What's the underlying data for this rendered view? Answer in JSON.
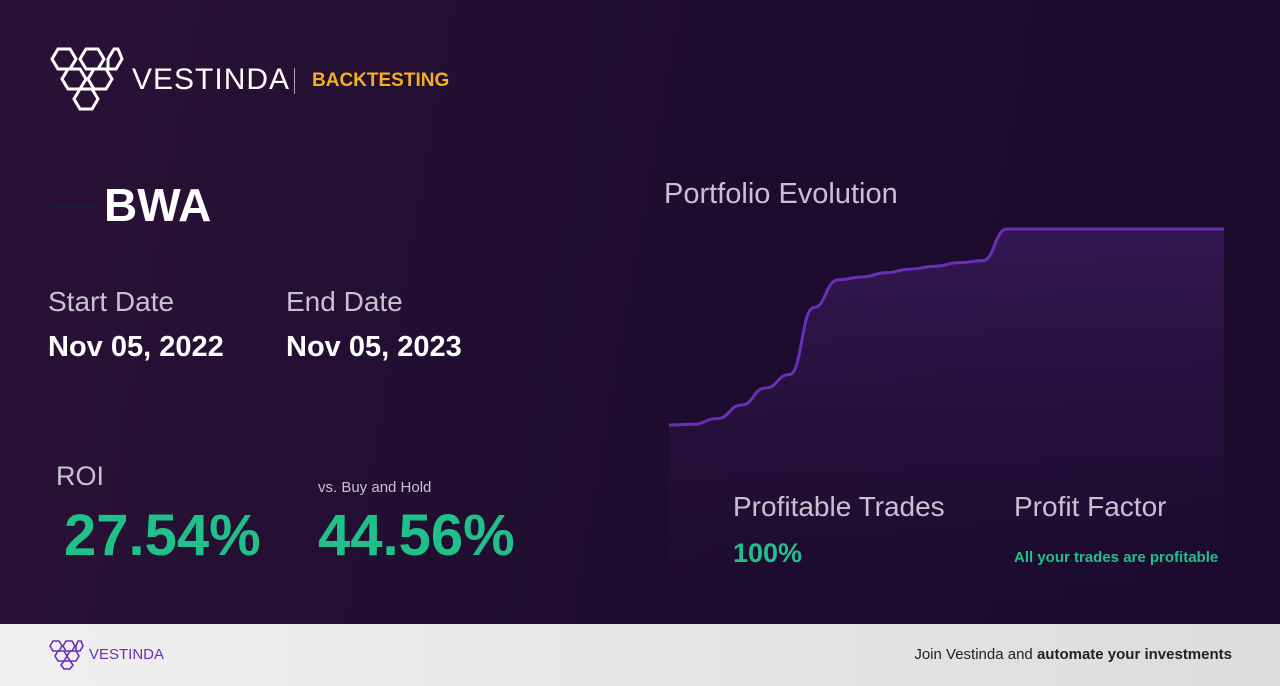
{
  "header": {
    "brand": "VESTINDA",
    "section": "BACKTESTING"
  },
  "ticker": "BWA",
  "start_date": {
    "label": "Start Date",
    "value": "Nov 05, 2022"
  },
  "end_date": {
    "label": "End Date",
    "value": "Nov 05, 2023"
  },
  "roi": {
    "label": "ROI",
    "value": "27.54%"
  },
  "vs_buy_hold": {
    "label": "vs. Buy and Hold",
    "value": "44.56%"
  },
  "chart_data": {
    "type": "line",
    "title": "Portfolio Evolution",
    "color": "#6a2fb8",
    "values": [
      0,
      0.1,
      0.9,
      2.8,
      5.2,
      7.1,
      16.5,
      20.4,
      20.8,
      21.4,
      21.9,
      22.3,
      22.8,
      23.1,
      27.54,
      27.54,
      27.54,
      27.54,
      27.54,
      27.54,
      27.54,
      27.54,
      27.54,
      27.54
    ]
  },
  "profitable_trades": {
    "label": "Profitable Trades",
    "value": "100%"
  },
  "profit_factor": {
    "label": "Profit Factor",
    "value": "All your trades are profitable"
  },
  "footer": {
    "brand": "VESTINDA",
    "cta_prefix": "Join Vestinda and",
    "cta_bold": "automate your investments"
  }
}
